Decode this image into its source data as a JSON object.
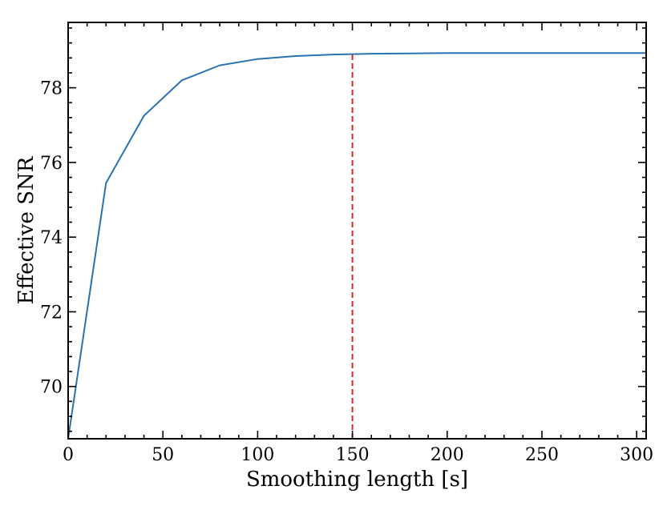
{
  "chart_data": {
    "type": "line",
    "title": "",
    "xlabel": "Smoothing length [s]",
    "ylabel": "Effective SNR",
    "xlim": [
      0,
      305
    ],
    "ylim": [
      68.6,
      79.75
    ],
    "x_ticks": [
      0,
      50,
      100,
      150,
      200,
      250,
      300
    ],
    "y_ticks": [
      70,
      72,
      74,
      76,
      78
    ],
    "x_tick_labels": [
      "0",
      "50",
      "100",
      "150",
      "200",
      "250",
      "300"
    ],
    "y_tick_labels": [
      "70",
      "72",
      "74",
      "76",
      "78"
    ],
    "grid": false,
    "series": [
      {
        "color": "#2b73b0",
        "x": [
          0,
          20,
          40,
          60,
          80,
          100,
          120,
          140,
          160,
          180,
          200,
          220,
          240,
          260,
          280,
          305
        ],
        "y": [
          68.6,
          75.45,
          77.25,
          78.2,
          78.6,
          78.77,
          78.85,
          78.89,
          78.91,
          78.92,
          78.93,
          78.93,
          78.93,
          78.93,
          78.93,
          78.93
        ]
      }
    ],
    "annotations": [
      {
        "type": "vline",
        "x": 150,
        "y_to": 78.89,
        "style": "dashed",
        "color": "#d62728"
      }
    ]
  }
}
